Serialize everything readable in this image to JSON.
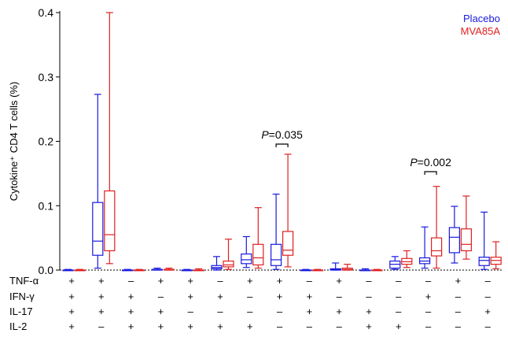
{
  "chart_data": {
    "type": "box",
    "ylabel": "Cytokine⁺ CD4 T cells (%)",
    "ylim": [
      0,
      0.4
    ],
    "yticks": [
      "0.0",
      "0.1",
      "0.2",
      "0.3",
      "0.4"
    ],
    "legend": {
      "placement": "top-right",
      "entries": [
        "Placebo",
        "MVA85A"
      ]
    },
    "series_colors": {
      "Placebo": "#1a1adf",
      "MVA85A": "#e02020"
    },
    "row_labels": [
      "TNF-α",
      "IFN-γ",
      "IL-17",
      "IL-2"
    ],
    "groups": [
      {
        "signs": [
          "+",
          "+",
          "+",
          "+"
        ],
        "placebo": [
          0,
          0,
          0,
          0,
          0.001
        ],
        "mva85a": [
          0,
          0,
          0,
          0,
          0.001
        ]
      },
      {
        "signs": [
          "+",
          "+",
          "+",
          "–"
        ],
        "placebo": [
          0.003,
          0.023,
          0.045,
          0.105,
          0.273
        ],
        "mva85a": [
          0.01,
          0.03,
          0.055,
          0.123,
          0.4
        ]
      },
      {
        "signs": [
          "–",
          "+",
          "+",
          "+"
        ],
        "placebo": [
          0,
          0,
          0,
          0,
          0.001
        ],
        "mva85a": [
          0,
          0,
          0,
          0,
          0.001
        ]
      },
      {
        "signs": [
          "+",
          "–",
          "+",
          "+"
        ],
        "placebo": [
          0,
          0,
          0.001,
          0.001,
          0.003
        ],
        "mva85a": [
          0,
          0,
          0.001,
          0.001,
          0.003
        ]
      },
      {
        "signs": [
          "+",
          "+",
          "–",
          "+"
        ],
        "placebo": [
          0,
          0,
          0,
          0,
          0.001
        ],
        "mva85a": [
          0,
          0,
          0,
          0,
          0.002
        ]
      },
      {
        "signs": [
          "–",
          "+",
          "–",
          "+"
        ],
        "placebo": [
          0,
          0.002,
          0.004,
          0.007,
          0.021
        ],
        "mva85a": [
          0.001,
          0.005,
          0.008,
          0.014,
          0.048
        ]
      },
      {
        "signs": [
          "+",
          "–",
          "–",
          "+"
        ],
        "placebo": [
          0.004,
          0.01,
          0.016,
          0.025,
          0.052
        ],
        "mva85a": [
          0.003,
          0.008,
          0.019,
          0.04,
          0.097
        ]
      },
      {
        "signs": [
          "+",
          "+",
          "–",
          "–"
        ],
        "placebo": [
          0.001,
          0.007,
          0.016,
          0.04,
          0.118
        ],
        "mva85a": [
          0.005,
          0.023,
          0.031,
          0.06,
          0.18
        ]
      },
      {
        "signs": [
          "–",
          "+",
          "+",
          "–"
        ],
        "placebo": [
          0,
          0,
          0,
          0,
          0.001
        ],
        "mva85a": [
          0,
          0,
          0,
          0,
          0.001
        ]
      },
      {
        "signs": [
          "+",
          "–",
          "+",
          "–"
        ],
        "placebo": [
          0,
          0,
          0.001,
          0.002,
          0.011
        ],
        "mva85a": [
          0,
          0,
          0.001,
          0.003,
          0.009
        ]
      },
      {
        "signs": [
          "–",
          "–",
          "+",
          "+"
        ],
        "placebo": [
          0,
          0,
          0,
          0,
          0.002
        ],
        "mva85a": [
          0,
          0,
          0,
          0,
          0.001
        ]
      },
      {
        "signs": [
          "–",
          "–",
          "–",
          "+"
        ],
        "placebo": [
          0.001,
          0.003,
          0.009,
          0.014,
          0.021
        ],
        "mva85a": [
          0.004,
          0.009,
          0.013,
          0.018,
          0.03
        ]
      },
      {
        "signs": [
          "–",
          "+",
          "–",
          "–"
        ],
        "placebo": [
          0.003,
          0.01,
          0.014,
          0.019,
          0.067
        ],
        "mva85a": [
          0.003,
          0.022,
          0.03,
          0.05,
          0.13
        ]
      },
      {
        "signs": [
          "+",
          "–",
          "–",
          "–"
        ],
        "placebo": [
          0.011,
          0.027,
          0.051,
          0.066,
          0.099
        ],
        "mva85a": [
          0.017,
          0.03,
          0.04,
          0.064,
          0.115
        ]
      },
      {
        "signs": [
          "–",
          "–",
          "+",
          "–"
        ],
        "placebo": [
          0.001,
          0.007,
          0.015,
          0.02,
          0.09
        ],
        "mva85a": [
          0.002,
          0.009,
          0.015,
          0.02,
          0.044
        ]
      }
    ],
    "annotations": [
      {
        "text": "P=0.035",
        "group_index": 7
      },
      {
        "text": "P=0.002",
        "group_index": 12
      }
    ]
  }
}
